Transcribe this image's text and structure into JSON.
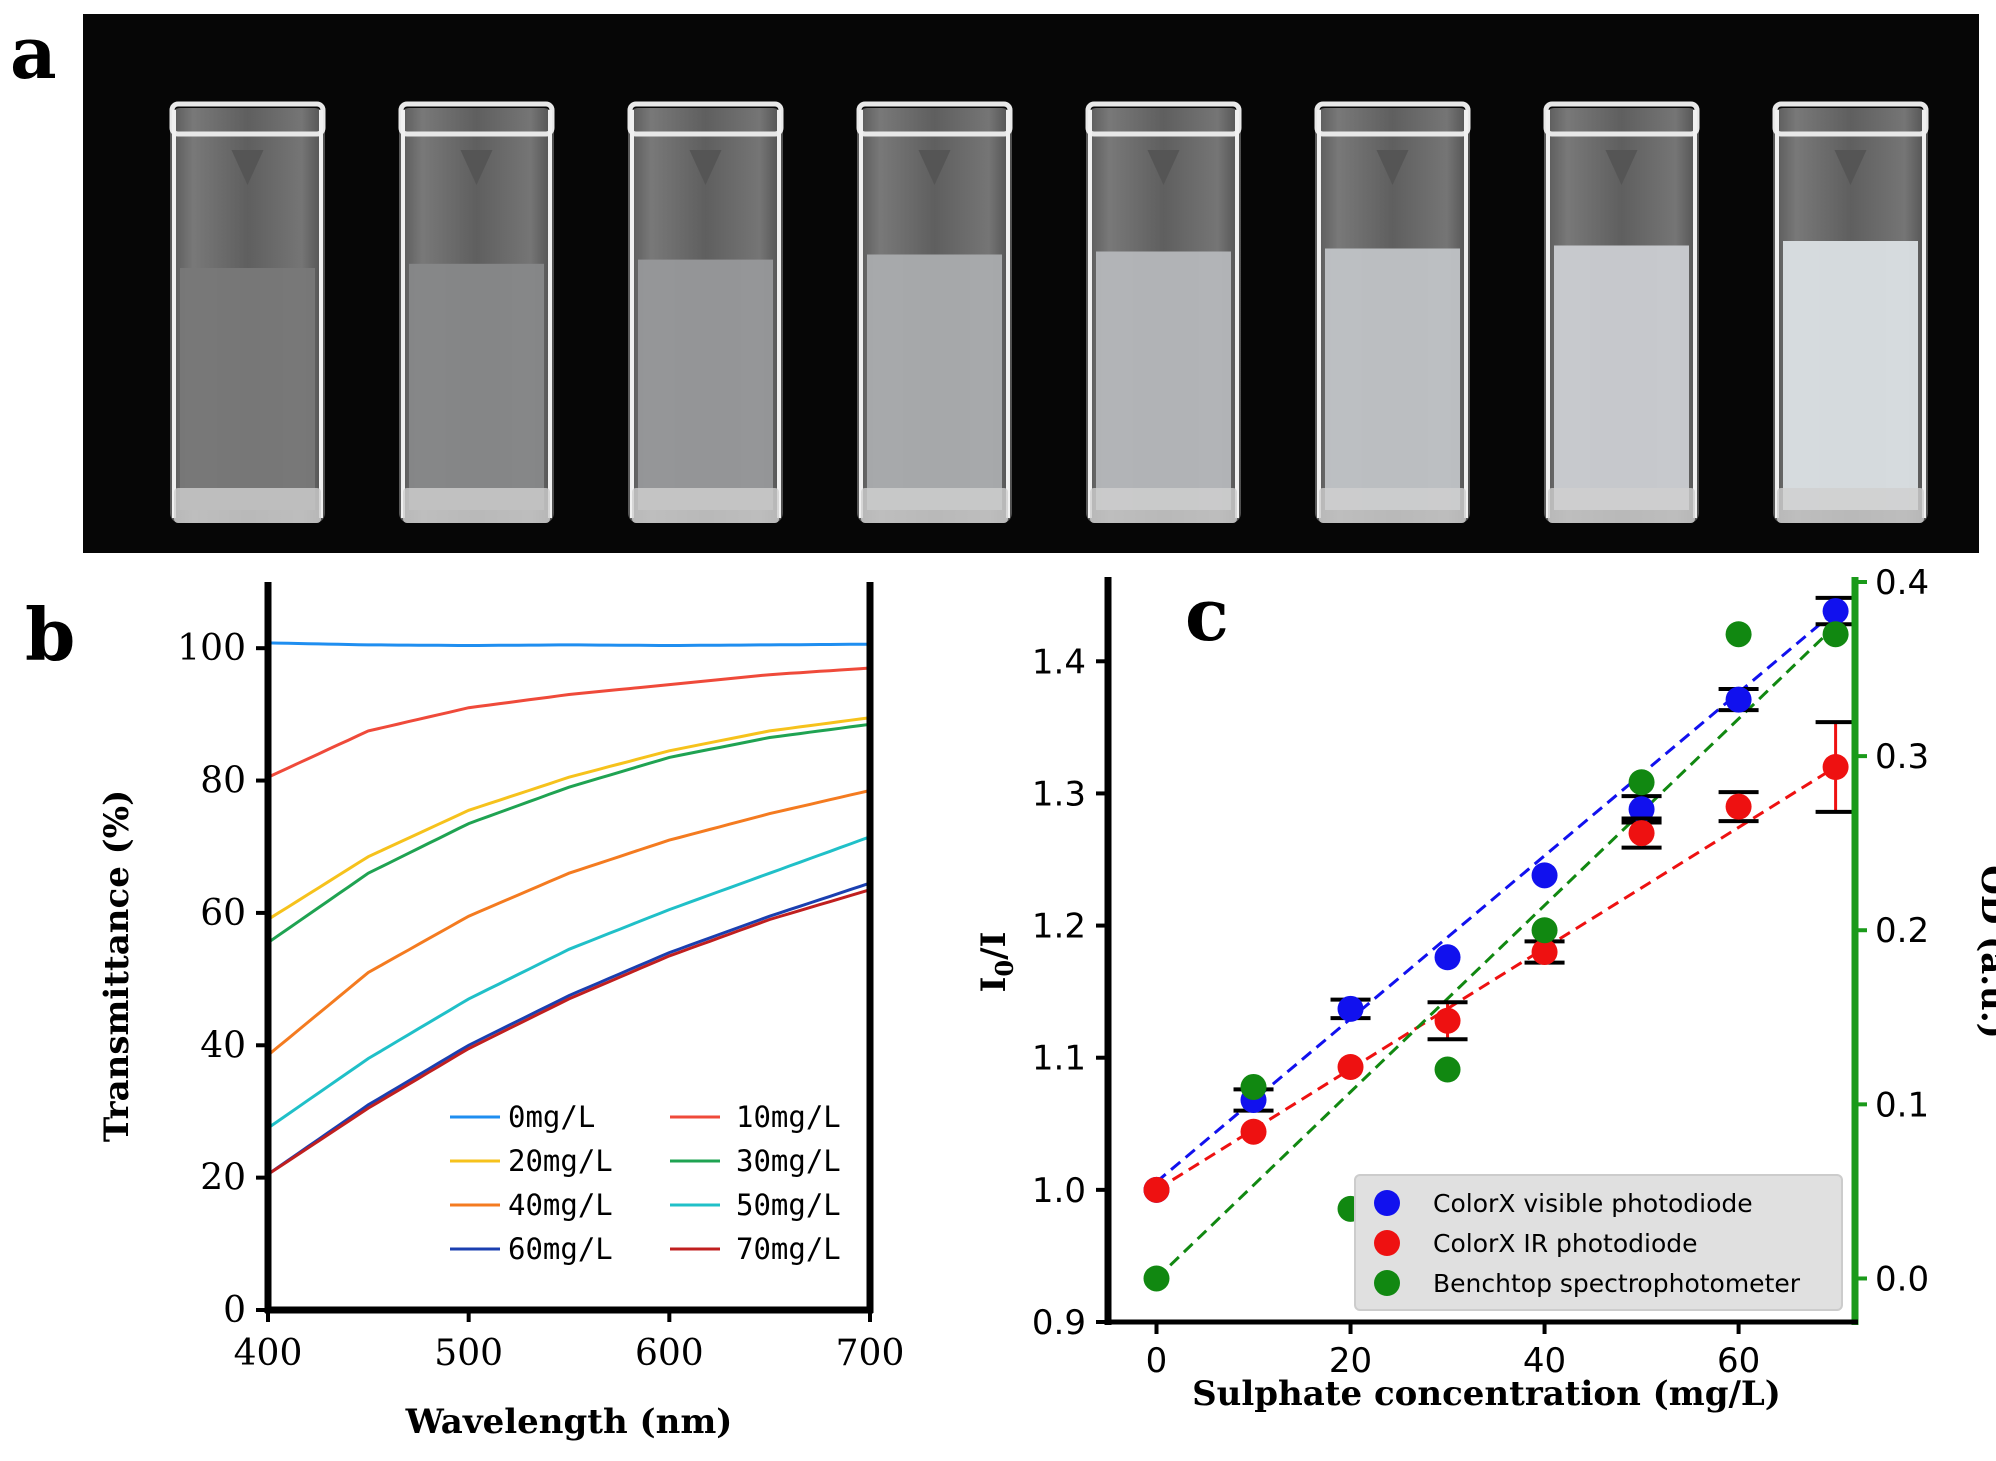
{
  "figure": {
    "panel_a": {
      "letter": "a",
      "cuvette_count": 8,
      "turbidity": [
        0.0,
        0.14,
        0.28,
        0.45,
        0.55,
        0.65,
        0.75,
        0.9
      ]
    },
    "panel_b": {
      "letter": "b"
    },
    "panel_c": {
      "letter": "c"
    }
  },
  "chart_data": [
    {
      "type": "line",
      "title": "",
      "xlabel": "Wavelength (nm)",
      "ylabel": "Transmittance (%)",
      "xlim": [
        400,
        700
      ],
      "ylim": [
        0,
        110
      ],
      "xticks": [
        400,
        500,
        600,
        700
      ],
      "yticks": [
        0,
        20,
        40,
        60,
        80,
        100
      ],
      "xtick_labels": [
        "400",
        "500",
        "600",
        "700"
      ],
      "ytick_labels": [
        "0",
        "20",
        "40",
        "60",
        "80",
        "100"
      ],
      "x": [
        400,
        450,
        500,
        550,
        600,
        650,
        700
      ],
      "series": [
        {
          "name": "0mg/L",
          "color": "#1f8ef0",
          "values": [
            100.8,
            100.5,
            100.4,
            100.5,
            100.4,
            100.5,
            100.6
          ]
        },
        {
          "name": "10mg/L",
          "color": "#ef4a3a",
          "values": [
            80.5,
            87.5,
            91.0,
            93.0,
            94.5,
            96.0,
            97.0
          ]
        },
        {
          "name": "20mg/L",
          "color": "#f6c21c",
          "values": [
            59.0,
            68.5,
            75.5,
            80.5,
            84.5,
            87.5,
            89.5
          ]
        },
        {
          "name": "30mg/L",
          "color": "#1fa352",
          "values": [
            55.5,
            66.0,
            73.5,
            79.0,
            83.5,
            86.5,
            88.5
          ]
        },
        {
          "name": "40mg/L",
          "color": "#f47b20",
          "values": [
            38.5,
            51.0,
            59.5,
            66.0,
            71.0,
            75.0,
            78.5
          ]
        },
        {
          "name": "50mg/L",
          "color": "#20c0c8",
          "values": [
            27.5,
            38.0,
            47.0,
            54.5,
            60.5,
            66.0,
            71.5
          ]
        },
        {
          "name": "60mg/L",
          "color": "#1a3fb0",
          "values": [
            20.5,
            31.0,
            40.0,
            47.5,
            54.0,
            59.5,
            64.5
          ]
        },
        {
          "name": "70mg/L",
          "color": "#c01f1f",
          "values": [
            20.5,
            30.5,
            39.5,
            47.0,
            53.5,
            59.0,
            63.5
          ]
        }
      ],
      "legend_position": "bottom-right"
    },
    {
      "type": "scatter",
      "title": "",
      "xlabel": "Sulphate concentration (mg/L)",
      "ylabel": "I0/I",
      "ylabel_main": "I",
      "ylabel_sub": "0",
      "ylabel_rest": "/I",
      "y2label": "OD (a.u.)",
      "xlim": [
        -5,
        72
      ],
      "ylim": [
        0.9,
        1.46
      ],
      "y2lim": [
        -0.025,
        0.4
      ],
      "xticks": [
        0,
        20,
        40,
        60
      ],
      "yticks": [
        0.9,
        1.0,
        1.1,
        1.2,
        1.3,
        1.4
      ],
      "y2ticks": [
        0.0,
        0.1,
        0.2,
        0.3,
        0.4
      ],
      "xtick_labels": [
        "0",
        "20",
        "40",
        "60"
      ],
      "ytick_labels": [
        "0.9",
        "1.0",
        "1.1",
        "1.2",
        "1.3",
        "1.4"
      ],
      "y2tick_labels": [
        "0.0",
        "0.1",
        "0.2",
        "0.3",
        "0.4"
      ],
      "y2_color": "#1a9a1a",
      "x": [
        0,
        10,
        20,
        30,
        40,
        50,
        60,
        70
      ],
      "series": [
        {
          "name": "ColorX visible photodiode",
          "color": "#1111ee",
          "axis": "left",
          "values": [
            1.0,
            1.068,
            1.137,
            1.176,
            1.238,
            1.288,
            1.371,
            1.438
          ],
          "errors": [
            0,
            0.008,
            0.007,
            0,
            0,
            0.01,
            0.008,
            0.01
          ],
          "fit": [
            [
              0,
              1.006
            ],
            [
              70,
              1.438
            ]
          ]
        },
        {
          "name": "ColorX IR photodiode",
          "color": "#ee1111",
          "axis": "left",
          "values": [
            1.0,
            1.044,
            1.093,
            1.128,
            1.18,
            1.27,
            1.29,
            1.32
          ],
          "errors": [
            0,
            0,
            0,
            0.014,
            0.008,
            0.011,
            0.011,
            0.034
          ],
          "fit": [
            [
              0,
              1.0
            ],
            [
              70,
              1.32
            ]
          ]
        },
        {
          "name": "Benchtop spectrophotometer",
          "color": "#118811",
          "axis": "right",
          "values": [
            0.0,
            0.11,
            0.04,
            0.12,
            0.2,
            0.285,
            0.37,
            0.37
          ],
          "errors": [
            0,
            0,
            0,
            0,
            0,
            0,
            0,
            0
          ],
          "fit": [
            [
              0,
              0.0
            ],
            [
              70,
              0.375
            ]
          ]
        }
      ],
      "legend_position": "bottom-right"
    }
  ]
}
